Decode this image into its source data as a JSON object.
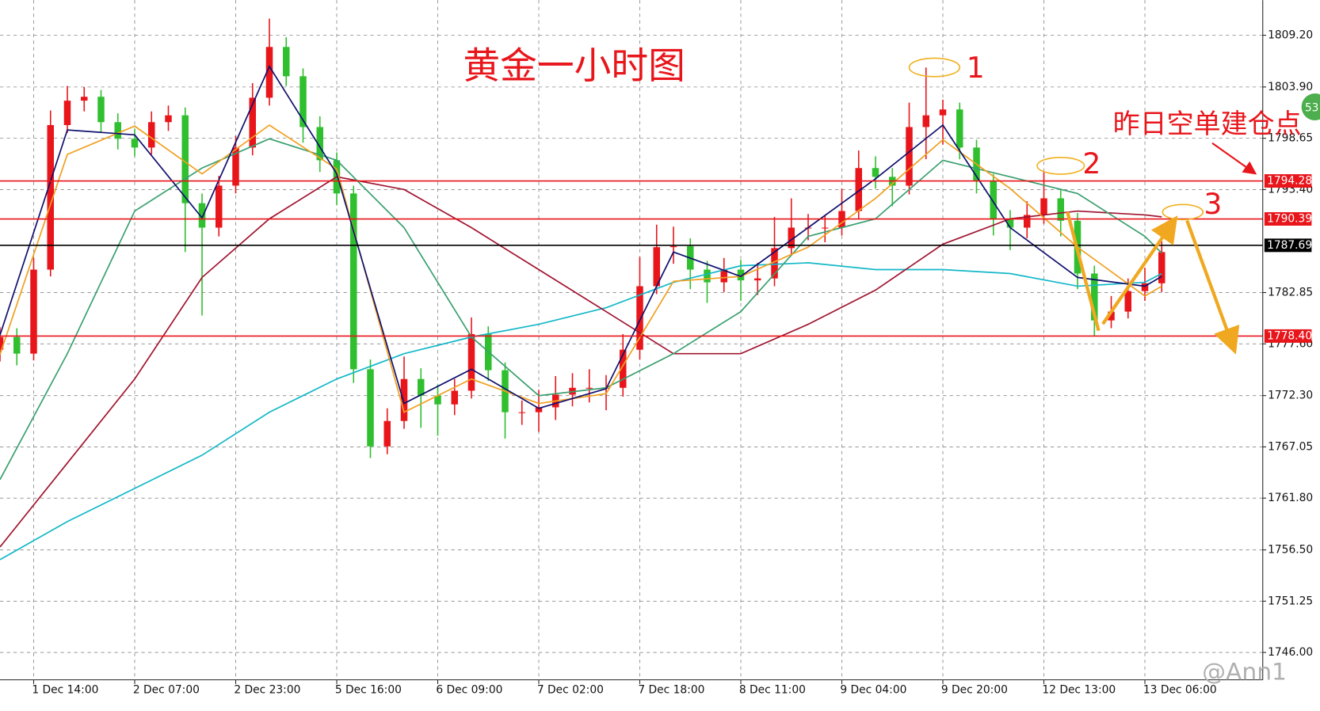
{
  "chart_data": {
    "type": "candlestick",
    "title": "黄金一小时图",
    "up_color": "#e8151b",
    "down_color": "#2fbf2f",
    "xlim": [
      0,
      75
    ],
    "ylim": [
      1743.2,
      1812.8
    ],
    "grid": true,
    "xticks": [
      {
        "value": 2,
        "label": "1 Dec 14:00"
      },
      {
        "value": 8,
        "label": "2 Dec 07:00"
      },
      {
        "value": 14,
        "label": "2 Dec 23:00"
      },
      {
        "value": 20,
        "label": "5 Dec 16:00"
      },
      {
        "value": 26,
        "label": "6 Dec 09:00"
      },
      {
        "value": 32,
        "label": "7 Dec 02:00"
      },
      {
        "value": 38,
        "label": "7 Dec 18:00"
      },
      {
        "value": 44,
        "label": "8 Dec 11:00"
      },
      {
        "value": 50,
        "label": "9 Dec 04:00"
      },
      {
        "value": 56,
        "label": "9 Dec 20:00"
      },
      {
        "value": 62,
        "label": "12 Dec 13:00"
      },
      {
        "value": 68,
        "label": "13 Dec 06:00"
      }
    ],
    "yticks": [
      {
        "value": 1809.2,
        "label": "1809.20"
      },
      {
        "value": 1803.9,
        "label": "1803.90"
      },
      {
        "value": 1798.65,
        "label": "1798.65"
      },
      {
        "value": 1793.4,
        "label": "1793.40"
      },
      {
        "value": 1782.85,
        "label": "1782.85"
      },
      {
        "value": 1777.6,
        "label": "1777.60"
      },
      {
        "value": 1772.3,
        "label": "1772.30"
      },
      {
        "value": 1767.05,
        "label": "1767.05"
      },
      {
        "value": 1761.8,
        "label": "1761.80"
      },
      {
        "value": 1756.5,
        "label": "1756.50"
      },
      {
        "value": 1751.25,
        "label": "1751.25"
      },
      {
        "value": 1746,
        "label": "1746.00"
      }
    ],
    "candles": {
      "open": [
        1777.0,
        1778.3,
        1776.6,
        1785.2,
        1800,
        1802.5,
        1802.9,
        1800.3,
        1798.6,
        1797.7,
        1800.3,
        1801.0,
        1792,
        1789.5,
        1793.8,
        1797.7,
        1802.8,
        1808,
        1805,
        1799.8,
        1796.4,
        1793,
        1775,
        1767.1,
        1769.7,
        1774,
        1772.3,
        1771.4,
        1772.8,
        1778.6,
        1774.9,
        1770.6,
        1770.6,
        1771.1,
        1772.4,
        1773.1,
        1773.1,
        1773.1,
        1777,
        1783.5,
        1787.5,
        1787.6,
        1785.2,
        1783.9,
        1785.2,
        1784.1,
        1784.3,
        1787.4,
        1789.5,
        1789.5,
        1789.5,
        1791.2,
        1795.6,
        1794.7,
        1793.8,
        1799.8,
        1801,
        1801.6,
        1797.7,
        1794.3,
        1790.4,
        1789.5,
        1790.8,
        1792.5,
        1790.2,
        1784.8,
        1780,
        1780.9,
        1783,
        1783.8
      ],
      "high": [
        1779.3,
        1779.2,
        1786.4,
        1801.5,
        1804.0,
        1803.9,
        1803.6,
        1801.2,
        1799.6,
        1801.4,
        1802.0,
        1801.8,
        1793.0,
        1794.8,
        1798.9,
        1804.3,
        1810.9,
        1809.0,
        1805.8,
        1800.9,
        1797.2,
        1793.8,
        1776.0,
        1771.0,
        1776.3,
        1775.1,
        1773.4,
        1774.0,
        1780.3,
        1779.4,
        1775.7,
        1771.8,
        1772.9,
        1774.3,
        1774.6,
        1775.0,
        1774.4,
        1778.6,
        1786.5,
        1789.8,
        1789.6,
        1788.4,
        1786.1,
        1786.4,
        1786.2,
        1785.9,
        1790.6,
        1792.5,
        1790.9,
        1790.7,
        1793.5,
        1797.4,
        1796.8,
        1795.6,
        1802.3,
        1805.9,
        1802.6,
        1802.3,
        1798.5,
        1795.0,
        1791.3,
        1792.2,
        1795.2,
        1793.4,
        1791.0,
        1785.6,
        1782.5,
        1784.3,
        1785.4,
        1788.1
      ],
      "low": [
        1775.8,
        1775.4,
        1775.9,
        1784.5,
        1799.2,
        1801.4,
        1799.2,
        1797.5,
        1796.8,
        1797.0,
        1799.4,
        1787.0,
        1780.5,
        1788.6,
        1793.0,
        1796.9,
        1802.0,
        1804.0,
        1798.2,
        1795.2,
        1791.8,
        1773.6,
        1765.9,
        1766.3,
        1768.9,
        1769.0,
        1768.2,
        1770.3,
        1772.0,
        1773.8,
        1767.9,
        1769.3,
        1768.6,
        1769.8,
        1771.2,
        1771.6,
        1770.8,
        1772.2,
        1776.0,
        1782.7,
        1785.8,
        1783.2,
        1781.8,
        1782.9,
        1782.0,
        1782.6,
        1783.5,
        1786.6,
        1788.2,
        1788.0,
        1788.7,
        1790.4,
        1793.5,
        1791.7,
        1792.9,
        1796.5,
        1798.0,
        1796.5,
        1793.0,
        1788.7,
        1787.2,
        1788.4,
        1789.9,
        1788.6,
        1783.2,
        1778.4,
        1779.2,
        1780.2,
        1782.0,
        1782.9
      ],
      "close": [
        1778.3,
        1776.6,
        1785.2,
        1800,
        1802.5,
        1802.9,
        1800.3,
        1798.6,
        1797.7,
        1800.3,
        1801.0,
        1792,
        1789.5,
        1793.8,
        1797.7,
        1802.8,
        1808,
        1805,
        1799.8,
        1796.4,
        1793,
        1775,
        1767.1,
        1769.7,
        1774,
        1772.3,
        1771.4,
        1772.8,
        1778.6,
        1774.9,
        1770.6,
        1770.6,
        1771.1,
        1772.4,
        1773.1,
        1773.1,
        1773.1,
        1777,
        1783.5,
        1787.5,
        1787.6,
        1785.2,
        1783.9,
        1785.2,
        1784.1,
        1784.3,
        1787.4,
        1789.5,
        1789.5,
        1789.5,
        1791.2,
        1795.6,
        1794.7,
        1793.8,
        1799.8,
        1801,
        1801.6,
        1797.7,
        1794.3,
        1790.4,
        1789.5,
        1790.8,
        1792.5,
        1790.2,
        1784.8,
        1780,
        1780.9,
        1783,
        1783.8,
        1787
      ]
    },
    "indicator_x": [
      0,
      4,
      8,
      12,
      16,
      20,
      24,
      28,
      32,
      36,
      40,
      44,
      48,
      52,
      56,
      60,
      64,
      68,
      69
    ],
    "indicators": [
      {
        "color": "#14b8c8",
        "values": [
          1755.5,
          1759.4,
          1762.8,
          1766.2,
          1770.6,
          1774.0,
          1776.6,
          1778.3,
          1779.6,
          1781.3,
          1783.9,
          1785.6,
          1785.9,
          1785.2,
          1785.2,
          1784.8,
          1783.5,
          1783.9,
          1784.8
        ]
      },
      {
        "color": "#a01530",
        "values": [
          1756.8,
          1765.4,
          1774.0,
          1784.4,
          1790.4,
          1794.7,
          1793.4,
          1789.5,
          1785.2,
          1780.9,
          1776.6,
          1776.6,
          1779.6,
          1783.1,
          1787.8,
          1790.4,
          1791.2,
          1790.8,
          1790.6
        ]
      },
      {
        "color": "#3aa070",
        "values": [
          1763.7,
          1776.6,
          1791.2,
          1795.6,
          1798.6,
          1796.4,
          1789.5,
          1778.3,
          1772.3,
          1773.1,
          1776.6,
          1780.9,
          1788.6,
          1790.4,
          1796.4,
          1794.7,
          1793.0,
          1788.6,
          1786.9
        ]
      },
      {
        "color": "#f0a020",
        "values": [
          1776.5,
          1797.0,
          1799.9,
          1795.0,
          1800.0,
          1795.5,
          1770.6,
          1774.0,
          1771.5,
          1772.5,
          1784.0,
          1784.5,
          1787.5,
          1792.5,
          1798.5,
          1793.5,
          1787.5,
          1782.5,
          1783.5
        ]
      },
      {
        "color": "#10106e",
        "values": [
          1778.5,
          1799.5,
          1799.0,
          1790.5,
          1806.0,
          1795.0,
          1771.5,
          1775.0,
          1771.0,
          1773.0,
          1787.0,
          1784.5,
          1789.5,
          1794.5,
          1800.0,
          1789.5,
          1784.4,
          1783.5,
          1784.5
        ]
      }
    ],
    "levels": [
      {
        "value": 1794.28,
        "label": "1794.28",
        "color": "#e8151b"
      },
      {
        "value": 1790.39,
        "label": "1790.39",
        "color": "#e8151b"
      },
      {
        "value": 1778.4,
        "label": "1778.40",
        "color": "#e8151b"
      },
      {
        "value": 1787.69,
        "label": "1787.69",
        "color": "#000000"
      }
    ],
    "annotations": [
      "1",
      "2",
      "3",
      "昨日空单建仓点"
    ],
    "badge": "53",
    "watermark": "@Ann1"
  }
}
